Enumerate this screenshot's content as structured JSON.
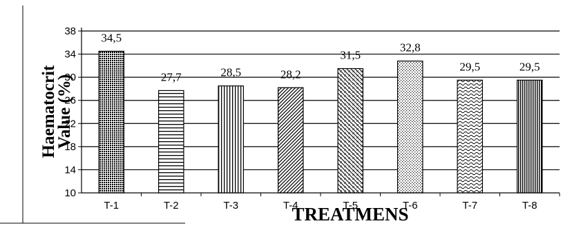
{
  "chart_data": {
    "type": "bar",
    "categories": [
      "T-1",
      "T-2",
      "T-3",
      "T-4",
      "T-5",
      "T-6",
      "T-7",
      "T-8"
    ],
    "values": [
      34.5,
      27.7,
      28.5,
      28.2,
      31.5,
      32.8,
      29.5,
      29.5
    ],
    "value_labels": [
      "34,5",
      "27,7",
      "28,5",
      "28,2",
      "31,5",
      "32,8",
      "29,5",
      "29,5"
    ],
    "yticks": [
      "38",
      "34",
      "30",
      "26",
      "22",
      "18",
      "14",
      "10"
    ],
    "ylim": [
      10,
      38
    ],
    "ylabel_line1": "Haematocrit",
    "ylabel_line2": "Value (%)",
    "xlabel": "TREATMENS",
    "grid": true,
    "legend": "none",
    "bar_patterns": [
      "dots-dense",
      "horizontal-lines",
      "vertical-lines",
      "diagonal-lines",
      "diagonal-dashed",
      "dots-sparse",
      "waves",
      "vertical-lines-dense"
    ]
  }
}
